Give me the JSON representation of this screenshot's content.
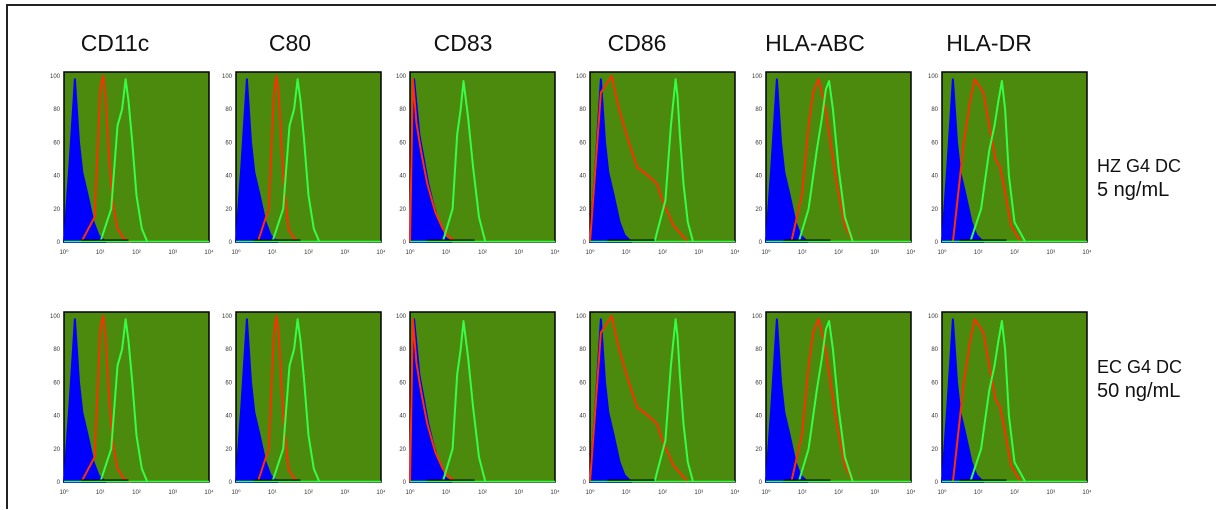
{
  "columns": [
    "CD11c",
    "C80",
    "CD83",
    "CD86",
    "HLA-ABC",
    "HLA-DR"
  ],
  "rows": [
    {
      "line1": "HZ G4 DC",
      "line2": "5 ng/mL"
    },
    {
      "line1": "EC G4 DC",
      "line2": "50 ng/mL"
    }
  ],
  "colors": {
    "panel_bg": "#4c8a0d",
    "blue": "#0000ff",
    "red": "#ff3000",
    "green": "#33ff44",
    "black": "#000000"
  },
  "chart_data": {
    "type": "area",
    "grid": false,
    "x_scale": "log",
    "xlim": [
      1,
      10000
    ],
    "ylim": [
      0,
      100
    ],
    "x_ticks": [
      "10⁰",
      "10¹",
      "10²",
      "10³",
      "10⁴"
    ],
    "y_ticks": [
      "0",
      "20",
      "40",
      "60",
      "80",
      "100"
    ],
    "panels": [
      {
        "row": 0,
        "col": 0,
        "series": [
          {
            "x": [
              1,
              1.4,
              2,
              2.6,
              3.2,
              4.5,
              6.5,
              9,
              14
            ],
            "y": [
              0,
              45,
              98,
              60,
              42,
              28,
              12,
              4,
              0
            ]
          },
          {
            "x": [
              3,
              7,
              10,
              12,
              14,
              17,
              22,
              30,
              45,
              70
            ],
            "y": [
              0,
              15,
              92,
              100,
              88,
              55,
              24,
              8,
              2,
              0
            ]
          },
          {
            "x": [
              10,
              20,
              30,
              40,
              50,
              60,
              75,
              100,
              140,
              200
            ],
            "y": [
              0,
              20,
              70,
              80,
              98,
              85,
              62,
              28,
              8,
              0
            ]
          }
        ]
      },
      {
        "row": 0,
        "col": 1,
        "series": [
          {
            "x": [
              1,
              1.4,
              2,
              2.6,
              3.2,
              4.5,
              6.5,
              9,
              14
            ],
            "y": [
              0,
              45,
              98,
              60,
              42,
              28,
              12,
              4,
              0
            ]
          },
          {
            "x": [
              4,
              8,
              11,
              13,
              15,
              18,
              22,
              28,
              40,
              60
            ],
            "y": [
              0,
              20,
              88,
              100,
              90,
              58,
              30,
              8,
              2,
              0
            ]
          },
          {
            "x": [
              10,
              20,
              30,
              40,
              50,
              60,
              75,
              100,
              140,
              200
            ],
            "y": [
              0,
              20,
              70,
              80,
              98,
              85,
              62,
              28,
              8,
              0
            ]
          }
        ]
      },
      {
        "row": 0,
        "col": 2,
        "series": [
          {
            "x": [
              1,
              1.3,
              1.8,
              2.4,
              3.2,
              4.5,
              6.5,
              9,
              14
            ],
            "y": [
              0,
              98,
              65,
              50,
              35,
              22,
              10,
              3,
              0
            ]
          },
          {
            "x": [
              1,
              1.2,
              1.5,
              2,
              3,
              5,
              8,
              12,
              20
            ],
            "y": [
              0,
              98,
              72,
              55,
              35,
              18,
              8,
              3,
              0
            ]
          },
          {
            "x": [
              8,
              15,
              20,
              25,
              30,
              40,
              55,
              80,
              120
            ],
            "y": [
              0,
              20,
              65,
              80,
              97,
              75,
              45,
              15,
              0
            ]
          }
        ]
      },
      {
        "row": 0,
        "col": 3,
        "series": [
          {
            "x": [
              1,
              1.4,
              2,
              2.6,
              3.2,
              4.5,
              6.5,
              9,
              14
            ],
            "y": [
              0,
              45,
              98,
              60,
              42,
              28,
              12,
              4,
              0
            ]
          },
          {
            "x": [
              1,
              2,
              4,
              6,
              10,
              20,
              40,
              70,
              100,
              200,
              500
            ],
            "y": [
              0,
              90,
              100,
              82,
              65,
              45,
              40,
              35,
              25,
              10,
              0
            ]
          },
          {
            "x": [
              60,
              120,
              170,
              200,
              230,
              260,
              300,
              380,
              500,
              700
            ],
            "y": [
              0,
              25,
              70,
              85,
              98,
              88,
              65,
              35,
              12,
              0
            ]
          }
        ]
      },
      {
        "row": 0,
        "col": 4,
        "series": [
          {
            "x": [
              1,
              1.4,
              2,
              2.6,
              3.2,
              4.5,
              6.5,
              9,
              14
            ],
            "y": [
              0,
              45,
              98,
              60,
              42,
              28,
              12,
              4,
              0
            ]
          },
          {
            "x": [
              5,
              10,
              15,
              20,
              28,
              40,
              60,
              90,
              150,
              250
            ],
            "y": [
              0,
              30,
              70,
              90,
              98,
              85,
              60,
              35,
              10,
              0
            ]
          },
          {
            "x": [
              8,
              15,
              25,
              35,
              45,
              55,
              70,
              100,
              150,
              250
            ],
            "y": [
              0,
              20,
              55,
              75,
              92,
              97,
              80,
              45,
              15,
              0
            ]
          }
        ]
      },
      {
        "row": 0,
        "col": 5,
        "series": [
          {
            "x": [
              1,
              1.4,
              2,
              2.6,
              3.2,
              4.5,
              6.5,
              9,
              14
            ],
            "y": [
              0,
              45,
              98,
              60,
              42,
              28,
              12,
              4,
              0
            ]
          },
          {
            "x": [
              2,
              4,
              6,
              8,
              10,
              14,
              20,
              30,
              40,
              55,
              80,
              150
            ],
            "y": [
              0,
              60,
              85,
              98,
              95,
              90,
              70,
              50,
              45,
              30,
              10,
              0
            ]
          },
          {
            "x": [
              6,
              12,
              20,
              28,
              36,
              45,
              55,
              70,
              100,
              200
            ],
            "y": [
              0,
              20,
              55,
              70,
              85,
              97,
              80,
              40,
              12,
              0
            ]
          }
        ]
      },
      {
        "row": 1,
        "col": 0,
        "series": [
          {
            "x": [
              1,
              1.4,
              2,
              2.6,
              3.2,
              4.5,
              6.5,
              9,
              14
            ],
            "y": [
              0,
              45,
              98,
              60,
              42,
              28,
              12,
              4,
              0
            ]
          },
          {
            "x": [
              3,
              7,
              10,
              12,
              14,
              17,
              22,
              30,
              45,
              70
            ],
            "y": [
              0,
              15,
              92,
              100,
              88,
              55,
              24,
              8,
              2,
              0
            ]
          },
          {
            "x": [
              10,
              20,
              30,
              40,
              50,
              60,
              75,
              100,
              140,
              200
            ],
            "y": [
              0,
              20,
              70,
              80,
              98,
              85,
              62,
              28,
              8,
              0
            ]
          }
        ]
      },
      {
        "row": 1,
        "col": 1,
        "series": [
          {
            "x": [
              1,
              1.4,
              2,
              2.6,
              3.2,
              4.5,
              6.5,
              9,
              14
            ],
            "y": [
              0,
              45,
              98,
              60,
              42,
              28,
              12,
              4,
              0
            ]
          },
          {
            "x": [
              4,
              8,
              11,
              13,
              15,
              18,
              22,
              28,
              40,
              60
            ],
            "y": [
              0,
              20,
              88,
              100,
              90,
              58,
              30,
              8,
              2,
              0
            ]
          },
          {
            "x": [
              10,
              20,
              30,
              40,
              50,
              60,
              75,
              100,
              140,
              200
            ],
            "y": [
              0,
              20,
              70,
              80,
              98,
              85,
              62,
              28,
              8,
              0
            ]
          }
        ]
      },
      {
        "row": 1,
        "col": 2,
        "series": [
          {
            "x": [
              1,
              1.3,
              1.8,
              2.4,
              3.2,
              4.5,
              6.5,
              9,
              14
            ],
            "y": [
              0,
              98,
              65,
              50,
              35,
              22,
              10,
              3,
              0
            ]
          },
          {
            "x": [
              1,
              1.2,
              1.5,
              2,
              3,
              5,
              8,
              12,
              20
            ],
            "y": [
              0,
              98,
              72,
              55,
              35,
              18,
              8,
              3,
              0
            ]
          },
          {
            "x": [
              8,
              15,
              20,
              25,
              30,
              40,
              55,
              80,
              120
            ],
            "y": [
              0,
              20,
              65,
              80,
              97,
              75,
              45,
              15,
              0
            ]
          }
        ]
      },
      {
        "row": 1,
        "col": 3,
        "series": [
          {
            "x": [
              1,
              1.4,
              2,
              2.6,
              3.2,
              4.5,
              6.5,
              9,
              14
            ],
            "y": [
              0,
              45,
              98,
              60,
              42,
              28,
              12,
              4,
              0
            ]
          },
          {
            "x": [
              1,
              2,
              4,
              6,
              10,
              20,
              40,
              70,
              100,
              200,
              500
            ],
            "y": [
              0,
              90,
              100,
              82,
              65,
              45,
              40,
              35,
              25,
              10,
              0
            ]
          },
          {
            "x": [
              60,
              120,
              170,
              200,
              230,
              260,
              300,
              380,
              500,
              700
            ],
            "y": [
              0,
              25,
              70,
              85,
              98,
              88,
              65,
              35,
              12,
              0
            ]
          }
        ]
      },
      {
        "row": 1,
        "col": 4,
        "series": [
          {
            "x": [
              1,
              1.4,
              2,
              2.6,
              3.2,
              4.5,
              6.5,
              9,
              14
            ],
            "y": [
              0,
              45,
              98,
              60,
              42,
              28,
              12,
              4,
              0
            ]
          },
          {
            "x": [
              5,
              10,
              15,
              20,
              28,
              40,
              60,
              90,
              150,
              250
            ],
            "y": [
              0,
              30,
              70,
              90,
              98,
              85,
              60,
              35,
              10,
              0
            ]
          },
          {
            "x": [
              8,
              15,
              25,
              35,
              45,
              55,
              70,
              100,
              150,
              250
            ],
            "y": [
              0,
              20,
              55,
              75,
              92,
              97,
              80,
              45,
              15,
              0
            ]
          }
        ]
      },
      {
        "row": 1,
        "col": 5,
        "series": [
          {
            "x": [
              1,
              1.4,
              2,
              2.6,
              3.2,
              4.5,
              6.5,
              9,
              14
            ],
            "y": [
              0,
              45,
              98,
              60,
              42,
              28,
              12,
              4,
              0
            ]
          },
          {
            "x": [
              2,
              4,
              6,
              8,
              10,
              14,
              20,
              30,
              40,
              55,
              80,
              150
            ],
            "y": [
              0,
              60,
              85,
              98,
              95,
              90,
              70,
              50,
              45,
              30,
              10,
              0
            ]
          },
          {
            "x": [
              6,
              12,
              20,
              28,
              36,
              45,
              55,
              70,
              100,
              200
            ],
            "y": [
              0,
              20,
              55,
              70,
              85,
              97,
              80,
              40,
              12,
              0
            ]
          }
        ]
      }
    ]
  }
}
